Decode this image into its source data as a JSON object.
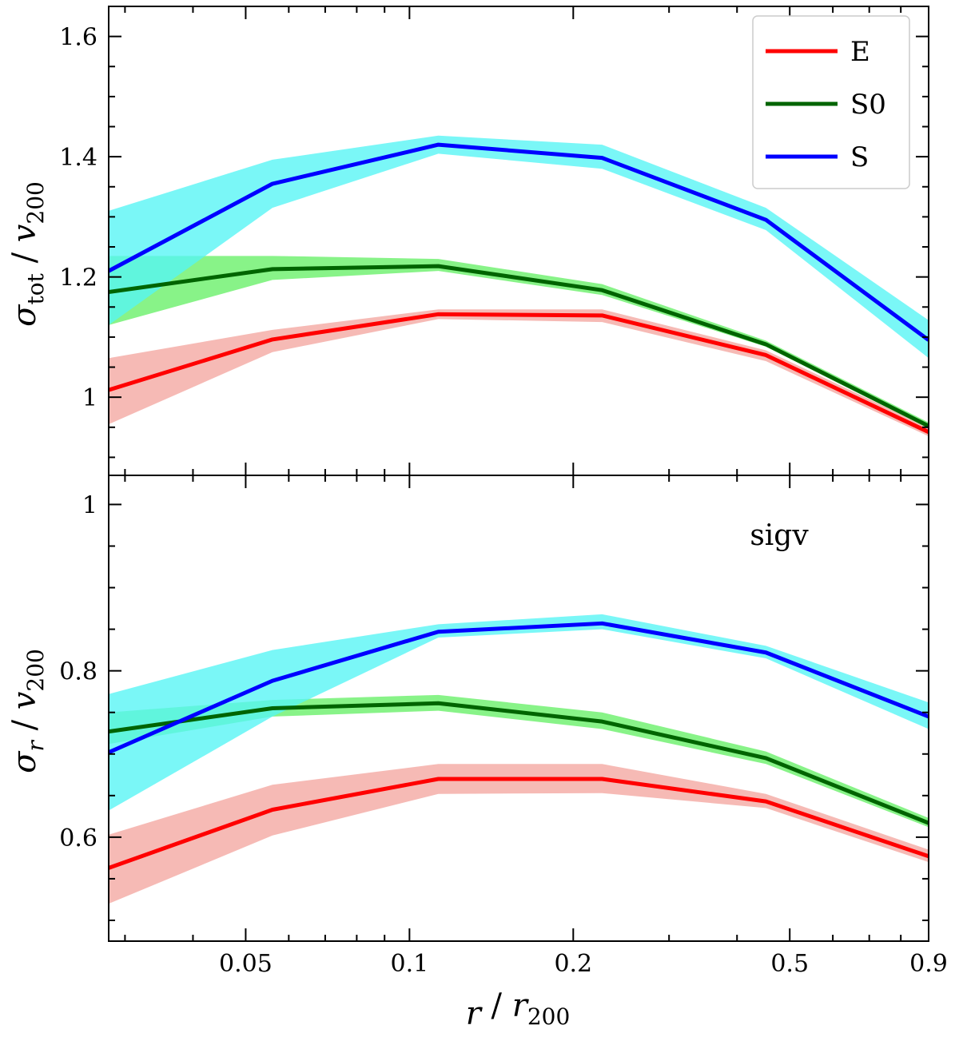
{
  "chart_data": {
    "type": "line",
    "x_scale": "log",
    "xlabel": "r / r200",
    "xlim": [
      0.028,
      0.9
    ],
    "xticks": [
      0.05,
      0.1,
      0.2,
      0.5,
      0.9
    ],
    "xtick_labels": [
      "0.05",
      "0.1",
      "0.2",
      "0.5",
      "0.9"
    ],
    "x": [
      0.028,
      0.056,
      0.113,
      0.226,
      0.452,
      0.9
    ],
    "colors": {
      "E": "#ff0000",
      "E_band": "#f4a6a0",
      "S0": "#006400",
      "S0_band": "#66f066",
      "S": "#0000ff",
      "S_band": "#55f5f5"
    },
    "legend": {
      "location": "top-right",
      "entries": [
        "E",
        "S0",
        "S"
      ]
    },
    "panels": [
      {
        "id": "top",
        "ylabel": "σtot / v200",
        "ylim": [
          0.87,
          1.65
        ],
        "yticks": [
          1.0,
          1.2,
          1.4,
          1.6
        ],
        "ytick_labels": [
          "1",
          "1.2",
          "1.4",
          "1.6"
        ],
        "series": [
          {
            "name": "E",
            "values": [
              1.012,
              1.096,
              1.138,
              1.136,
              1.07,
              0.942
            ],
            "lower": [
              0.955,
              1.075,
              1.13,
              1.125,
              1.06,
              0.935
            ],
            "upper": [
              1.065,
              1.112,
              1.146,
              1.146,
              1.078,
              0.95
            ]
          },
          {
            "name": "S0",
            "values": [
              1.175,
              1.213,
              1.218,
              1.178,
              1.088,
              0.952
            ],
            "lower": [
              1.12,
              1.195,
              1.21,
              1.17,
              1.084,
              0.948
            ],
            "upper": [
              1.235,
              1.235,
              1.23,
              1.188,
              1.094,
              0.958
            ]
          },
          {
            "name": "S",
            "values": [
              1.21,
              1.355,
              1.42,
              1.398,
              1.295,
              1.095
            ],
            "lower": [
              1.12,
              1.315,
              1.405,
              1.38,
              1.278,
              1.065
            ],
            "upper": [
              1.31,
              1.395,
              1.435,
              1.42,
              1.315,
              1.128
            ]
          }
        ]
      },
      {
        "id": "bottom",
        "annotation": "sigv",
        "ylabel": "σr / v200",
        "ylim": [
          0.475,
          1.035
        ],
        "yticks": [
          0.6,
          0.8,
          1.0
        ],
        "ytick_labels": [
          "0.6",
          "0.8",
          "1"
        ],
        "series": [
          {
            "name": "E",
            "values": [
              0.563,
              0.633,
              0.67,
              0.67,
              0.643,
              0.577
            ],
            "lower": [
              0.52,
              0.602,
              0.652,
              0.653,
              0.635,
              0.57
            ],
            "upper": [
              0.603,
              0.663,
              0.688,
              0.688,
              0.652,
              0.585
            ]
          },
          {
            "name": "S0",
            "values": [
              0.727,
              0.755,
              0.761,
              0.739,
              0.695,
              0.617
            ],
            "lower": [
              0.712,
              0.745,
              0.752,
              0.73,
              0.688,
              0.612
            ],
            "upper": [
              0.75,
              0.765,
              0.771,
              0.75,
              0.703,
              0.623
            ]
          },
          {
            "name": "S",
            "values": [
              0.702,
              0.788,
              0.847,
              0.857,
              0.822,
              0.745
            ],
            "lower": [
              0.632,
              0.745,
              0.84,
              0.85,
              0.815,
              0.73
            ],
            "upper": [
              0.772,
              0.825,
              0.856,
              0.868,
              0.83,
              0.762
            ]
          }
        ]
      }
    ]
  }
}
